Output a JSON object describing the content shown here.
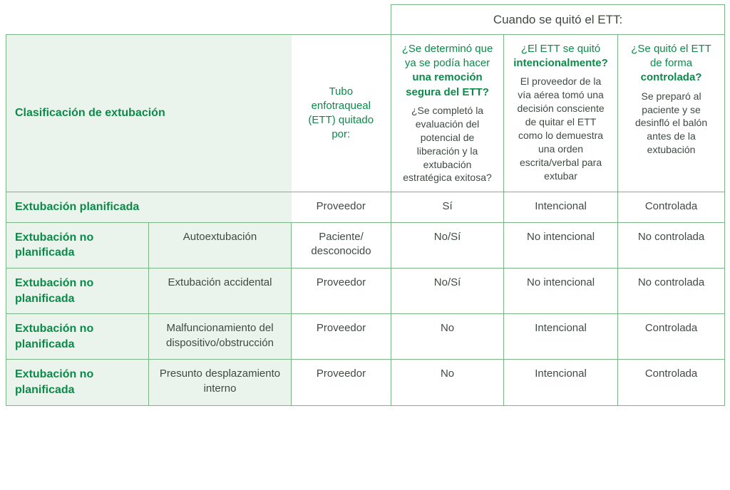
{
  "header": {
    "classification": "Clasificación de extubación",
    "ett_removed_by": "Tubo enfotraqueal (ETT)\nquitado por:",
    "super": "Cuando se quitó el ETT:",
    "q1_lead_a": "¿Se determinó que ya se podía hacer ",
    "q1_bold": "una remoción segura del ETT?",
    "q1_sub": "¿Se completó la evaluación del potencial de liberación y la extubación estratégica exitosa?",
    "q2_lead_a": "¿El ETT se quitó ",
    "q2_bold": "intencionalmente?",
    "q2_sub": "El proveedor de la vía aérea tomó una decisión consciente de quitar el ETT como lo demuestra una orden escrita/verbal para extubar",
    "q3_lead_a": "¿Se quitó el ETT de forma ",
    "q3_bold": "controlada?",
    "q3_sub": "Se preparó al paciente y se desinfló el balón antes de la extubación"
  },
  "rows": [
    {
      "cat": "Extubación planificada",
      "sub": "",
      "by": "Proveedor",
      "q1": "Sí",
      "q2": "Intencional",
      "q3": "Controlada",
      "span": true
    },
    {
      "cat": "Extubación no planificada",
      "sub": "Autoextubación",
      "by": "Paciente/ desconocido",
      "q1": "No/Sí",
      "q2": "No intencional",
      "q3": "No controlada"
    },
    {
      "cat": "Extubación no planificada",
      "sub": "Extubación accidental",
      "by": "Proveedor",
      "q1": "No/Sí",
      "q2": "No intencional",
      "q3": "No controlada"
    },
    {
      "cat": "Extubación no planificada",
      "sub": "Malfuncionamiento del dispositivo/obstrucción",
      "by": "Proveedor",
      "q1": "No",
      "q2": "Intencional",
      "q3": "Controlada"
    },
    {
      "cat": "Extubación no planificada",
      "sub": "Presunto desplazamiento interno",
      "by": "Proveedor",
      "q1": "No",
      "q2": "Intencional",
      "q3": "Controlada"
    }
  ]
}
